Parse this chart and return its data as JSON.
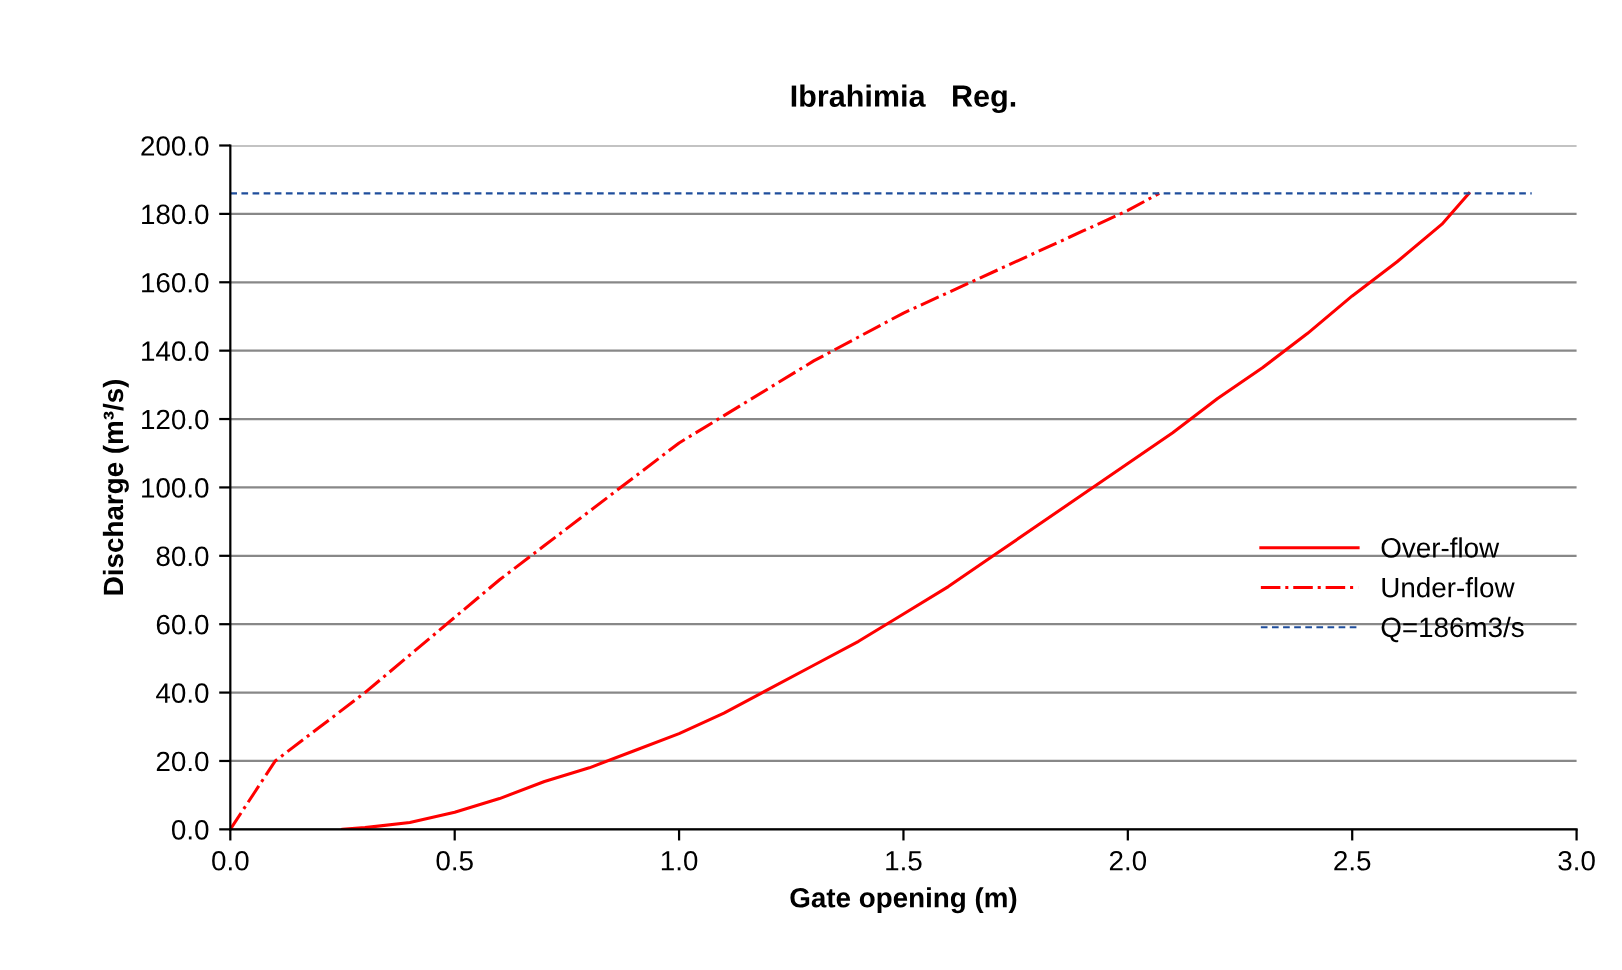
{
  "chart_data": {
    "type": "line",
    "title": "Ibrahimia   Reg.",
    "xlabel": "Gate opening (m)",
    "ylabel": "Discharge (m³/s)",
    "xlim": [
      0,
      3
    ],
    "ylim": [
      0,
      200
    ],
    "xticks": [
      {
        "value": 0,
        "label": "0.0"
      },
      {
        "value": 0.5,
        "label": "0.5"
      },
      {
        "value": 1,
        "label": "1.0"
      },
      {
        "value": 1.5,
        "label": "1.5"
      },
      {
        "value": 2,
        "label": "2.0"
      },
      {
        "value": 2.5,
        "label": "2.5"
      },
      {
        "value": 3,
        "label": "3.0"
      }
    ],
    "yticks": [
      {
        "value": 0,
        "label": "0.0"
      },
      {
        "value": 20,
        "label": "20.0"
      },
      {
        "value": 40,
        "label": "40.0"
      },
      {
        "value": 60,
        "label": "60.0"
      },
      {
        "value": 80,
        "label": "80.0"
      },
      {
        "value": 100,
        "label": "100.0"
      },
      {
        "value": 120,
        "label": "120.0"
      },
      {
        "value": 140,
        "label": "140.0"
      },
      {
        "value": 160,
        "label": "160.0"
      },
      {
        "value": 180,
        "label": "180.0"
      },
      {
        "value": 200,
        "label": "200.0"
      }
    ],
    "grid": "y",
    "legend": "right",
    "marker": "none",
    "series": [
      {
        "name": "Over-flow",
        "color": "#ff0000",
        "line_style": "solid",
        "x": [
          0.25,
          0.3,
          0.4,
          0.5,
          0.6,
          0.7,
          0.8,
          0.9,
          1.0,
          1.1,
          1.2,
          1.3,
          1.4,
          1.5,
          1.6,
          1.7,
          1.8,
          1.9,
          2.0,
          2.1,
          2.2,
          2.3,
          2.4,
          2.5,
          2.6,
          2.7,
          2.76
        ],
        "values": [
          0,
          0.5,
          2,
          5,
          9,
          14,
          18,
          23,
          28,
          34,
          41,
          48,
          55,
          63,
          71,
          80,
          89,
          98,
          107,
          116,
          126,
          135,
          145,
          156,
          166,
          177,
          186
        ]
      },
      {
        "name": "Under-flow",
        "color": "#ff0000",
        "line_style": "dashdot",
        "x": [
          0,
          0.1,
          0.2,
          0.3,
          0.4,
          0.5,
          0.6,
          0.7,
          0.8,
          0.9,
          1.0,
          1.1,
          1.2,
          1.3,
          1.4,
          1.5,
          1.6,
          1.7,
          1.8,
          1.9,
          2.0,
          2.07
        ],
        "values": [
          0,
          20,
          30,
          40,
          51,
          62,
          73,
          83,
          93,
          103,
          113,
          121,
          129,
          137,
          144,
          151,
          157,
          163,
          169,
          175,
          181,
          186
        ]
      },
      {
        "name": "Q=186m3/s",
        "color": "#1f4e9c",
        "line_style": "dashed",
        "x": [
          0,
          2.9
        ],
        "values": [
          186,
          186
        ]
      }
    ]
  }
}
